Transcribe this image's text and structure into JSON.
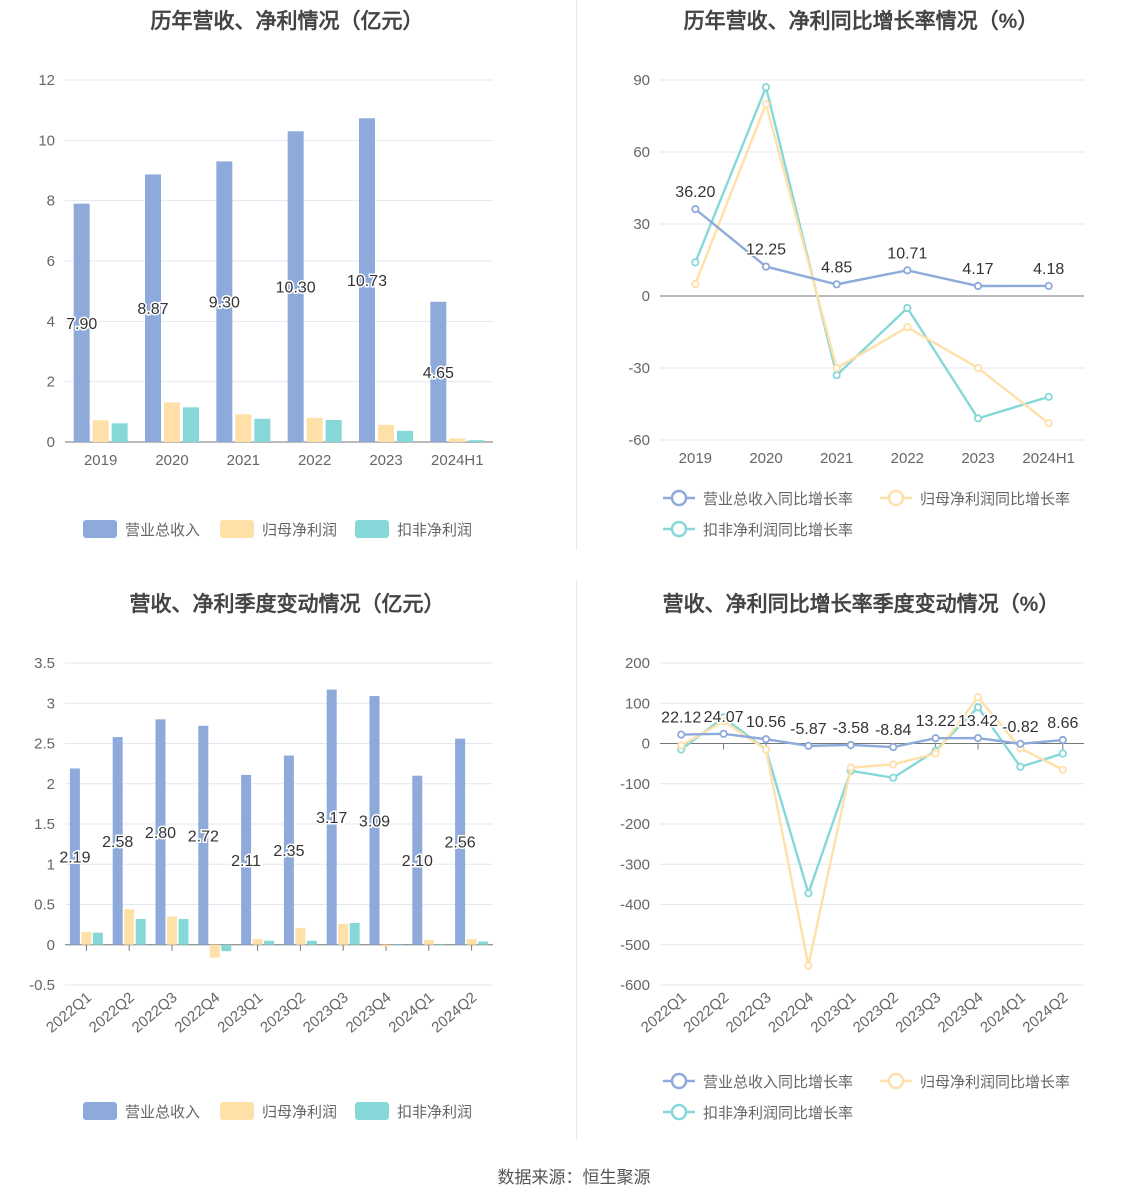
{
  "source": "数据来源：恒生聚源",
  "chart_data": [
    {
      "type": "bar",
      "title": "历年营收、净利情况（亿元）",
      "categories": [
        "2019",
        "2020",
        "2021",
        "2022",
        "2023",
        "2024H1"
      ],
      "ylim": [
        0,
        12
      ],
      "yticks": [
        0,
        2,
        4,
        6,
        8,
        10,
        12
      ],
      "grid": true,
      "legend_position": "bottom",
      "label_series": 0,
      "series": [
        {
          "name": "营业总收入",
          "color": "#8eaadb",
          "values": [
            7.9,
            8.87,
            9.3,
            10.3,
            10.73,
            4.65
          ]
        },
        {
          "name": "归母净利润",
          "color": "#ffe0a8",
          "values": [
            0.72,
            1.31,
            0.92,
            0.8,
            0.57,
            0.12
          ]
        },
        {
          "name": "扣非净利润",
          "color": "#86d8d8",
          "values": [
            0.62,
            1.15,
            0.77,
            0.73,
            0.37,
            0.06
          ]
        }
      ],
      "data_labels": [
        "7.90",
        "8.87",
        "9.30",
        "10.30",
        "10.73",
        "4.65"
      ]
    },
    {
      "type": "line",
      "title": "历年营收、净利同比增长率情况（%）",
      "categories": [
        "2019",
        "2020",
        "2021",
        "2022",
        "2023",
        "2024H1"
      ],
      "ylim": [
        -60,
        90
      ],
      "yticks": [
        -60,
        -30,
        0,
        30,
        60,
        90
      ],
      "grid": true,
      "legend_position": "bottom",
      "label_series": 0,
      "series": [
        {
          "name": "营业总收入同比增长率",
          "color": "#8eaadb",
          "values": [
            36.2,
            12.25,
            4.85,
            10.71,
            4.17,
            4.18
          ]
        },
        {
          "name": "归母净利润同比增长率",
          "color": "#ffe0a8",
          "values": [
            5,
            80,
            -30,
            -13,
            -30,
            -53
          ]
        },
        {
          "name": "扣非净利润同比增长率",
          "color": "#86d8d8",
          "values": [
            14,
            87,
            -33,
            -5,
            -51,
            -42
          ]
        }
      ],
      "data_labels": [
        "36.20",
        "12.25",
        "4.85",
        "10.71",
        "4.17",
        "4.18"
      ]
    },
    {
      "type": "bar",
      "title": "营收、净利季度变动情况（亿元）",
      "categories": [
        "2022Q1",
        "2022Q2",
        "2022Q3",
        "2022Q4",
        "2023Q1",
        "2023Q2",
        "2023Q3",
        "2023Q4",
        "2024Q1",
        "2024Q2"
      ],
      "ylim": [
        -0.5,
        3.5
      ],
      "yticks": [
        -0.5,
        0,
        0.5,
        1,
        1.5,
        2,
        2.5,
        3,
        3.5
      ],
      "grid": true,
      "legend_position": "bottom",
      "label_series": 0,
      "series": [
        {
          "name": "营业总收入",
          "color": "#8eaadb",
          "values": [
            2.19,
            2.58,
            2.8,
            2.72,
            2.11,
            2.35,
            3.17,
            3.09,
            2.1,
            2.56
          ]
        },
        {
          "name": "归母净利润",
          "color": "#ffe0a8",
          "values": [
            0.16,
            0.44,
            0.35,
            -0.16,
            0.07,
            0.21,
            0.26,
            -0.02,
            0.06,
            0.07
          ]
        },
        {
          "name": "扣非净利润",
          "color": "#86d8d8",
          "values": [
            0.15,
            0.32,
            0.32,
            -0.08,
            0.05,
            0.05,
            0.27,
            -0.01,
            0.0,
            0.04
          ]
        }
      ],
      "data_labels": [
        "2.19",
        "2.58",
        "2.80",
        "2.72",
        "2.11",
        "2.35",
        "3.17",
        "3.09",
        "2.10",
        "2.56"
      ]
    },
    {
      "type": "line",
      "title": "营收、净利同比增长率季度变动情况（%）",
      "categories": [
        "2022Q1",
        "2022Q2",
        "2022Q3",
        "2022Q4",
        "2023Q1",
        "2023Q2",
        "2023Q3",
        "2023Q4",
        "2024Q1",
        "2024Q2"
      ],
      "ylim": [
        -600,
        200
      ],
      "yticks": [
        -600,
        -500,
        -400,
        -300,
        -200,
        -100,
        0,
        100,
        200
      ],
      "grid": true,
      "legend_position": "bottom",
      "label_series": 0,
      "series": [
        {
          "name": "营业总收入同比增长率",
          "color": "#8eaadb",
          "values": [
            22.12,
            24.07,
            10.56,
            -5.87,
            -3.58,
            -8.84,
            13.22,
            13.42,
            -0.82,
            8.66
          ]
        },
        {
          "name": "归母净利润同比增长率",
          "color": "#ffe0a8",
          "values": [
            -5,
            55,
            -15,
            -552,
            -60,
            -52,
            -25,
            115,
            -12,
            -65
          ]
        },
        {
          "name": "扣非净利润同比增长率",
          "color": "#86d8d8",
          "values": [
            -15,
            65,
            -15,
            -372,
            -68,
            -85,
            -18,
            90,
            -58,
            -25
          ]
        }
      ],
      "data_labels": [
        "22.12",
        "24.07",
        "10.56",
        "-5.87",
        "-3.58",
        "-8.84",
        "13.22",
        "13.42",
        "-0.82",
        "8.66"
      ]
    }
  ]
}
